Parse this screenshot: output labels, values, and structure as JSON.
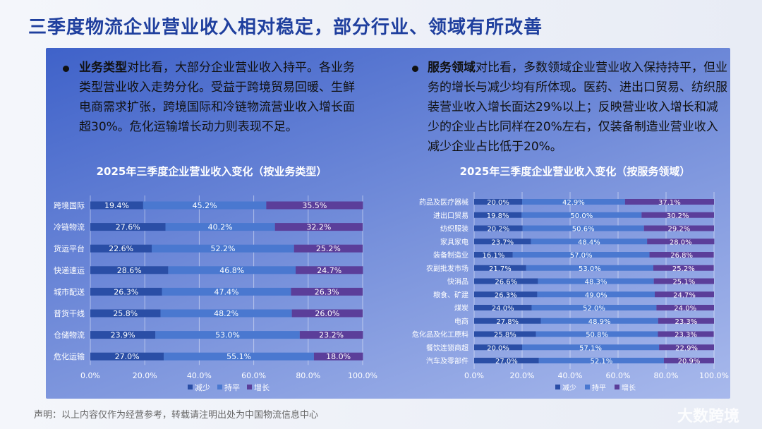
{
  "title": "三季度物流企业营业收入相对稳定，部分行业、领域有所改善",
  "left_text": {
    "bold": "业务类型",
    "rest": "对比看，大部分企业营业收入持平。各业务类型营业收入走势分化。受益于跨境贸易回暖、生鲜电商需求扩张，跨境国际和冷链物流营业收入增长面超30%。危化运输增长动力则表现不足。"
  },
  "right_text": {
    "bold": "服务领域",
    "rest": "对比看，多数领域企业营业收入保持持平，但业务的增长与减少均有所体现。医药、进出口贸易、纺织服装营业收入增长面达29%以上；反映营业收入增长和减少的企业占比同样在20%左右，仅装备制造业营业收入减少企业占比低于20%。"
  },
  "footer": "声明：以上内容仅作为经营参考，转载请注明出处为中国物流信息中心",
  "watermark": "大数跨境",
  "colors": {
    "减少": "#2a4ea6",
    "持平": "#4a78d0",
    "增长": "#5b3e9a"
  },
  "chart_data": [
    {
      "type": "bar",
      "stacked": true,
      "orientation": "horizontal",
      "title": "2025年三季度企业营业收入变化（按业务类型）",
      "categories": [
        "跨境国际",
        "冷链物流",
        "货运平台",
        "快递速运",
        "城市配送",
        "普货干线",
        "仓储物流",
        "危化运输"
      ],
      "series": [
        {
          "name": "减少",
          "values": [
            19.4,
            27.6,
            22.6,
            28.6,
            26.3,
            25.8,
            23.9,
            27.0
          ]
        },
        {
          "name": "持平",
          "values": [
            45.2,
            40.2,
            52.2,
            46.8,
            47.4,
            48.2,
            53.0,
            55.1
          ]
        },
        {
          "name": "增长",
          "values": [
            35.5,
            32.2,
            25.2,
            24.7,
            26.3,
            26.0,
            23.2,
            18.0
          ]
        }
      ],
      "xticks": [
        "0.0%",
        "20.0%",
        "40.0%",
        "60.0%",
        "80.0%",
        "100.0%"
      ],
      "xlim": [
        0,
        100
      ],
      "grid": true,
      "legend": "bottom"
    },
    {
      "type": "bar",
      "stacked": true,
      "orientation": "horizontal",
      "title": "2025年三季度企业营业收入变化（按服务领域）",
      "categories": [
        "药品及医疗器械",
        "进出口贸易",
        "纺织服装",
        "家具家电",
        "装备制造业",
        "农副批发市场",
        "快消品",
        "粮食、矿建",
        "煤炭",
        "电商",
        "危化品及化工原料",
        "餐饮连锁商超",
        "汽车及零部件"
      ],
      "series": [
        {
          "name": "减少",
          "values": [
            20.0,
            19.8,
            20.2,
            23.7,
            16.1,
            21.7,
            26.6,
            26.3,
            24.0,
            27.8,
            25.8,
            20.0,
            27.0
          ]
        },
        {
          "name": "持平",
          "values": [
            42.9,
            50.0,
            50.6,
            48.4,
            57.0,
            53.0,
            48.3,
            49.0,
            52.0,
            48.9,
            50.8,
            57.1,
            52.1
          ]
        },
        {
          "name": "增长",
          "values": [
            37.1,
            30.2,
            29.2,
            28.0,
            26.8,
            25.2,
            25.1,
            24.7,
            24.0,
            23.3,
            23.3,
            22.9,
            20.9
          ]
        }
      ],
      "xticks": [
        "0.0%",
        "20.0%",
        "40.0%",
        "60.0%",
        "80.0%",
        "100.0%"
      ],
      "xlim": [
        0,
        100
      ],
      "grid": true,
      "legend": "bottom"
    }
  ]
}
